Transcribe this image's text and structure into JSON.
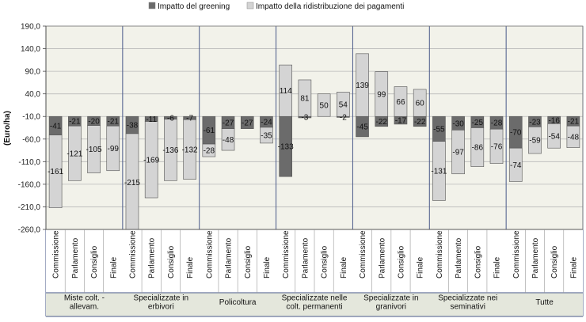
{
  "chart_data": {
    "type": "bar",
    "ylabel": "(Euro/ha)",
    "ylim": [
      -260,
      190
    ],
    "yticks": [
      190.0,
      140.0,
      90.0,
      40.0,
      -10.0,
      -60.0,
      -110.0,
      -160.0,
      -210.0,
      -260.0
    ],
    "ytick_labels": [
      "190,0",
      "140,0",
      "90,0",
      "40,0",
      "-10,0",
      "-60,0",
      "-110,0",
      "-160,0",
      "-210,0",
      "-260,0"
    ],
    "baseline": -10,
    "categories": [
      "Commissione",
      "Parlamento",
      "Consiglio",
      "Finale"
    ],
    "groups": [
      {
        "label": "Miste colt. - allevam.",
        "greening": [
          -41,
          -21,
          -20,
          -21
        ],
        "ridistribuzione": [
          -161,
          -121,
          -105,
          -99
        ]
      },
      {
        "label": "Specializzate in erbivori",
        "greening": [
          -38,
          -11,
          -6,
          -7
        ],
        "ridistribuzione": [
          -215,
          -169,
          -136,
          -132
        ]
      },
      {
        "label": "Policoltura",
        "greening": [
          -61,
          -27,
          -27,
          -24
        ],
        "ridistribuzione": [
          -28,
          -48,
          0,
          -35
        ]
      },
      {
        "label": "Specializzate nelle colt. permanenti",
        "greening": [
          -133,
          -3,
          0,
          -2
        ],
        "ridistribuzione": [
          114,
          81,
          50,
          54
        ]
      },
      {
        "label": "Specializzate in granivori",
        "greening": [
          -45,
          -22,
          -17,
          -22
        ],
        "ridistribuzione": [
          139,
          99,
          66,
          60
        ]
      },
      {
        "label": "Specializzate nei seminativi",
        "greening": [
          -55,
          -30,
          -25,
          -28
        ],
        "ridistribuzione": [
          -131,
          -97,
          -86,
          -76
        ]
      },
      {
        "label": "Tutte",
        "greening": [
          -70,
          -23,
          -16,
          -21
        ],
        "ridistribuzione": [
          -74,
          -59,
          -54,
          -48
        ]
      }
    ],
    "series": [
      {
        "name": "Impatto del greening",
        "key": "greening",
        "color": "#6b6b6b"
      },
      {
        "name": "Impatto della ridistribuzione dei pagamenti",
        "key": "ridistribuzione",
        "color": "#d4d4d4"
      }
    ],
    "grid": true,
    "legend": "top"
  },
  "colors": {
    "plot_bg": "#f2f2ea",
    "bar_border": "#555555",
    "group_border": "#4a5a8a",
    "group_bg": "#e4e7dc"
  }
}
